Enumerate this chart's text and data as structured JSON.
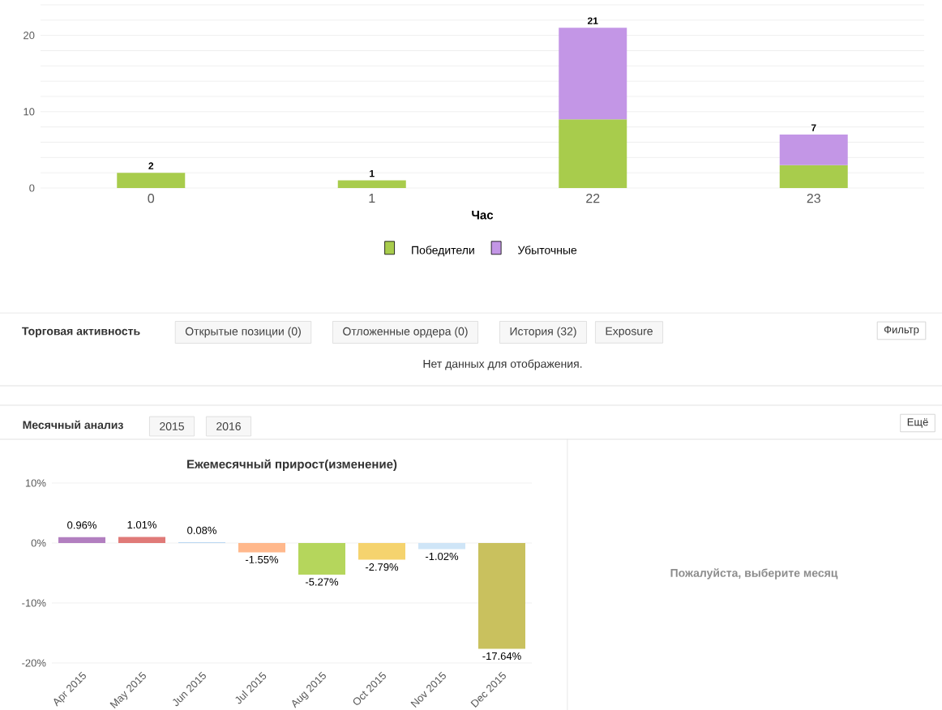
{
  "chart_data": [
    {
      "type": "bar",
      "stacked": true,
      "xlabel": "Час",
      "categories": [
        "0",
        "1",
        "22",
        "23"
      ],
      "series": [
        {
          "name": "Победители",
          "color": "#a8cc4c",
          "values": [
            2,
            1,
            9,
            3
          ]
        },
        {
          "name": "Убыточные",
          "color": "#c396e6",
          "values": [
            null,
            null,
            12,
            4
          ]
        }
      ],
      "ylim": [
        0,
        24
      ],
      "yticks": [
        0,
        {
          "value": 2,
          "label": null
        },
        {
          "value": 4,
          "label": null
        },
        {
          "value": 6,
          "label": null
        },
        {
          "value": 8,
          "label": null
        },
        10,
        {
          "value": 12,
          "label": null
        },
        {
          "value": 14,
          "label": null
        },
        {
          "value": 16,
          "label": null
        },
        {
          "value": 18,
          "label": null
        },
        20,
        {
          "value": 22,
          "label": null
        },
        {
          "value": 24,
          "label": null
        }
      ],
      "grid": "y",
      "legend": "bottom",
      "totals": [
        "2",
        "1",
        "21",
        "7"
      ]
    },
    {
      "type": "other",
      "annotations": [
        "Торговая активность",
        "Открытые позиции (0)",
        "Отложенные ордера (0)",
        "История (32)",
        "Exposure",
        "Фильтр",
        "Нет данных для отображения.",
        "Месячный анализ",
        "2015",
        "2016",
        "Ещё",
        "Пожалуйста, выберите месяц"
      ]
    },
    {
      "type": "bar",
      "title": "Ежемесячный прирост(изменение)",
      "categories": [
        "Apr 2015",
        "May 2015",
        "Jun 2015",
        "Jul 2015",
        "Aug 2015",
        "Oct 2015",
        "Nov 2015",
        "Dec 2015"
      ],
      "values": [
        0.96,
        1.01,
        0.08,
        -1.55,
        -5.27,
        -2.79,
        -1.02,
        -17.64
      ],
      "colors": [
        "#b27fc0",
        "#e07a78",
        "#7cb5ec",
        "#ffb88c",
        "#b5d65c",
        "#f5d36e",
        "#cfe5f7",
        "#c9c15e"
      ],
      "value_labels": [
        "0.96%",
        "1.01%",
        "0.08%",
        "-1.55%",
        "-5.27%",
        "-2.79%",
        "-1.02%",
        "-17.64%"
      ],
      "ylim": [
        -20,
        10
      ],
      "yticks": [
        {
          "value": -20,
          "label": "-20%"
        },
        {
          "value": -10,
          "label": "-10%"
        },
        {
          "value": 0,
          "label": "0%"
        },
        {
          "value": 10,
          "label": "10%"
        }
      ],
      "grid": "y"
    }
  ]
}
